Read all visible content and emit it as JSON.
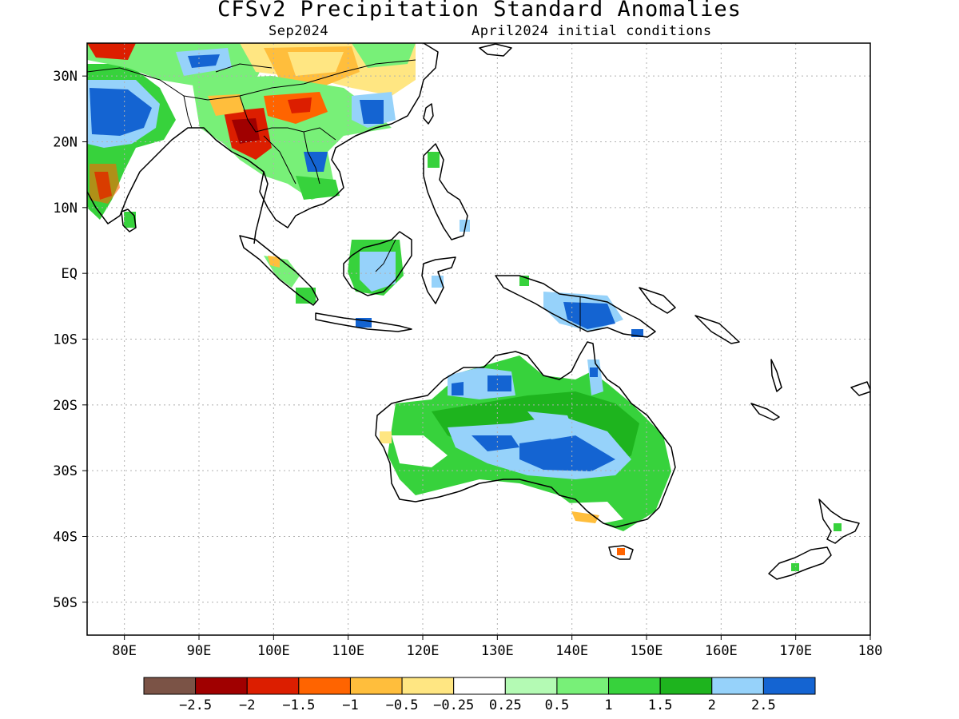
{
  "title": "CFSv2 Precipitation Standard Anomalies",
  "subtitle_left": "Sep2024",
  "subtitle_right": "April2024 initial conditions",
  "map": {
    "lon_range": [
      75,
      180
    ],
    "lat_range": [
      -55,
      35
    ],
    "lat_ticks": [
      {
        "value": 30,
        "label": "30N"
      },
      {
        "value": 20,
        "label": "20N"
      },
      {
        "value": 10,
        "label": "10N"
      },
      {
        "value": 0,
        "label": "EQ"
      },
      {
        "value": -10,
        "label": "10S"
      },
      {
        "value": -20,
        "label": "20S"
      },
      {
        "value": -30,
        "label": "30S"
      },
      {
        "value": -40,
        "label": "40S"
      },
      {
        "value": -50,
        "label": "50S"
      }
    ],
    "lon_ticks": [
      {
        "value": 80,
        "label": "80E"
      },
      {
        "value": 90,
        "label": "90E"
      },
      {
        "value": 100,
        "label": "100E"
      },
      {
        "value": 110,
        "label": "110E"
      },
      {
        "value": 120,
        "label": "120E"
      },
      {
        "value": 130,
        "label": "130E"
      },
      {
        "value": 140,
        "label": "140E"
      },
      {
        "value": 150,
        "label": "150E"
      },
      {
        "value": 160,
        "label": "160E"
      },
      {
        "value": 170,
        "label": "170E"
      },
      {
        "value": 180,
        "label": "180"
      }
    ],
    "grid": true
  },
  "colorbar": {
    "colors": [
      "#7b5346",
      "#a00000",
      "#dc1e00",
      "#ff6400",
      "#ffbe3c",
      "#ffe682",
      "#ffffff",
      "#b4fab4",
      "#78f078",
      "#37d23c",
      "#1eb41e",
      "#96d2fa",
      "#1464d2"
    ],
    "labels": [
      "−2.5",
      "−2",
      "−1.5",
      "−1",
      "−0.5",
      "−0.25",
      "0.25",
      "0.5",
      "1",
      "1.5",
      "2",
      "2.5"
    ]
  }
}
